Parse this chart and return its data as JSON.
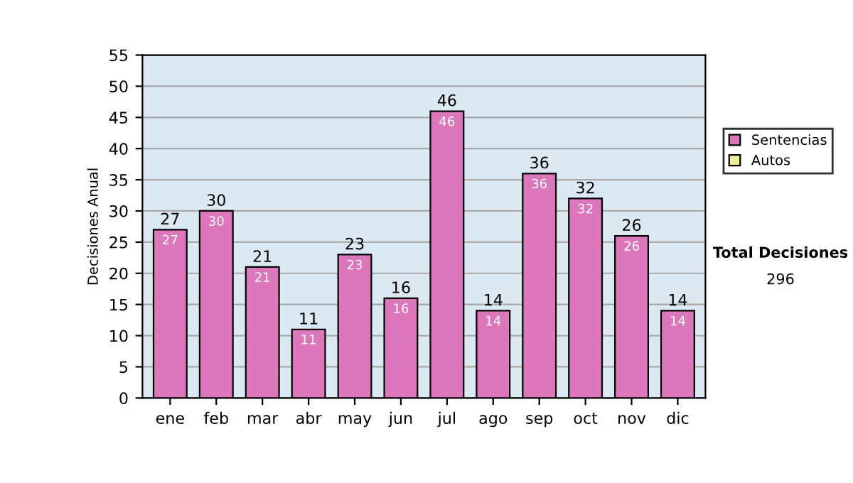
{
  "chart_data": {
    "type": "bar",
    "stacked": true,
    "ylabel": "Decisiones Anual",
    "categories": [
      "ene",
      "feb",
      "mar",
      "abr",
      "may",
      "jun",
      "jul",
      "ago",
      "sep",
      "oct",
      "nov",
      "dic"
    ],
    "series": [
      {
        "name": "Sentencias",
        "color": "#dd77bb",
        "values": [
          27,
          30,
          21,
          11,
          23,
          16,
          46,
          14,
          36,
          32,
          26,
          14
        ],
        "value_labels": [
          "27",
          "30",
          "21",
          "11",
          "23",
          "16",
          "46",
          "14",
          "36",
          "32",
          "26",
          "14"
        ]
      },
      {
        "name": "Autos",
        "color": "#eeee99",
        "values": [
          null,
          null,
          null,
          null,
          null,
          null,
          null,
          null,
          null,
          null,
          null,
          null
        ]
      }
    ],
    "totals": [
      "27",
      "30",
      "21",
      "11",
      "23",
      "16",
      "46",
      "14",
      "36",
      "32",
      "26",
      "14"
    ],
    "ylim": [
      0,
      55
    ],
    "yticks": [
      0,
      5,
      10,
      15,
      20,
      25,
      30,
      35,
      40,
      45,
      50,
      55
    ],
    "grid": "y",
    "legend": "right",
    "annotations": [
      "Total Decisiones",
      "296"
    ]
  }
}
